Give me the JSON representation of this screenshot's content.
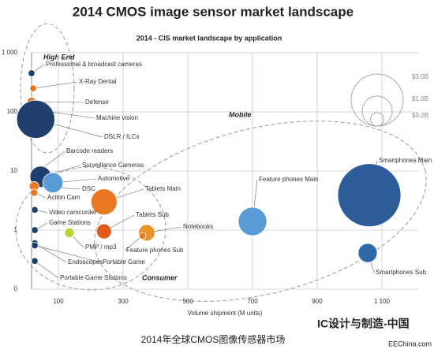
{
  "chart_data": {
    "type": "bubble",
    "title": "2014 CMOS image sensor market landscape",
    "subtitle": "2014 - CIS market landscape by application",
    "x_label": "Volume shipment (M units)",
    "xlim": [
      0,
      1200
    ],
    "xticks": [
      100,
      300,
      500,
      700,
      900,
      {
        "value": 1100,
        "label": "1 100"
      }
    ],
    "ylim": [
      0.1,
      1000
    ],
    "log_y": true,
    "yticks": [
      {
        "value": 0.1,
        "label": "0"
      },
      1,
      10,
      100,
      {
        "value": 1000,
        "label": "1 000"
      }
    ],
    "grid": true,
    "names": [
      "Professional & broadcast cameras",
      "X-Ray Dental",
      "Defense",
      "Machine vision",
      "DSLR / ILCs",
      "Barcode readers",
      "Surveillance Cameras",
      "Automotive",
      "DSC",
      "Action Cam",
      "Tablets Main",
      "Video camcorder",
      "Game Stations",
      "Tablets Sub",
      "Notebooks",
      "PMP / mp3",
      "Feature phones Sub",
      "Endoscopes",
      "Portable Game",
      "Portable Game Stations",
      "Feature phones Main",
      "Smartphones Main",
      "Smartphones Sub"
    ],
    "x": [
      17,
      22,
      17,
      25,
      30,
      30,
      45,
      83,
      25,
      25,
      241,
      27,
      27,
      241,
      373,
      134,
      360,
      27,
      27,
      27,
      700,
      1061,
      1056
    ],
    "y": [
      450,
      250,
      150,
      110,
      75,
      9,
      8,
      6.3,
      5.5,
      4.3,
      3,
      2.2,
      1,
      0.95,
      0.9,
      0.9,
      0.8,
      0.6,
      0.55,
      0.3,
      1.4,
      3.9,
      0.41
    ],
    "sizes": [
      0.05,
      0.05,
      0.08,
      0.12,
      1.6,
      0.05,
      0.5,
      0.45,
      0.1,
      0.06,
      0.75,
      0.05,
      0.05,
      0.25,
      0.3,
      0.1,
      0.05,
      0.05,
      0.05,
      0.05,
      0.9,
      4.4,
      0.4
    ],
    "colors": [
      "#1f3f6e",
      "#e87722",
      "#e87722",
      "#e87722",
      "#1f3f6e",
      "#1f3f6e",
      "#1f3f6e",
      "#5b9bd5",
      "#e87722",
      "#e87722",
      "#e87722",
      "#1f3f6e",
      "#1f3f6e",
      "#e05a1a",
      "#e8952a",
      "#b5d334",
      "#e87722",
      "#1f3f6e",
      "#1f3f6e",
      "#1f3f6e",
      "#5b9bd5",
      "#2e5c9a",
      "#2e6aa8"
    ],
    "size_legend": [
      {
        "value": 3.0,
        "label": "$3.0B"
      },
      {
        "value": 1.0,
        "label": "$1.0B"
      },
      {
        "value": 0.2,
        "label": "$0.2B"
      }
    ],
    "groups": [
      "High End",
      "Mobile",
      "Consumer"
    ],
    "caption": "2014年全球CMOS图像传感器市场",
    "watermark": [
      "IC设计与制造-中国",
      "EEChina.com"
    ]
  }
}
